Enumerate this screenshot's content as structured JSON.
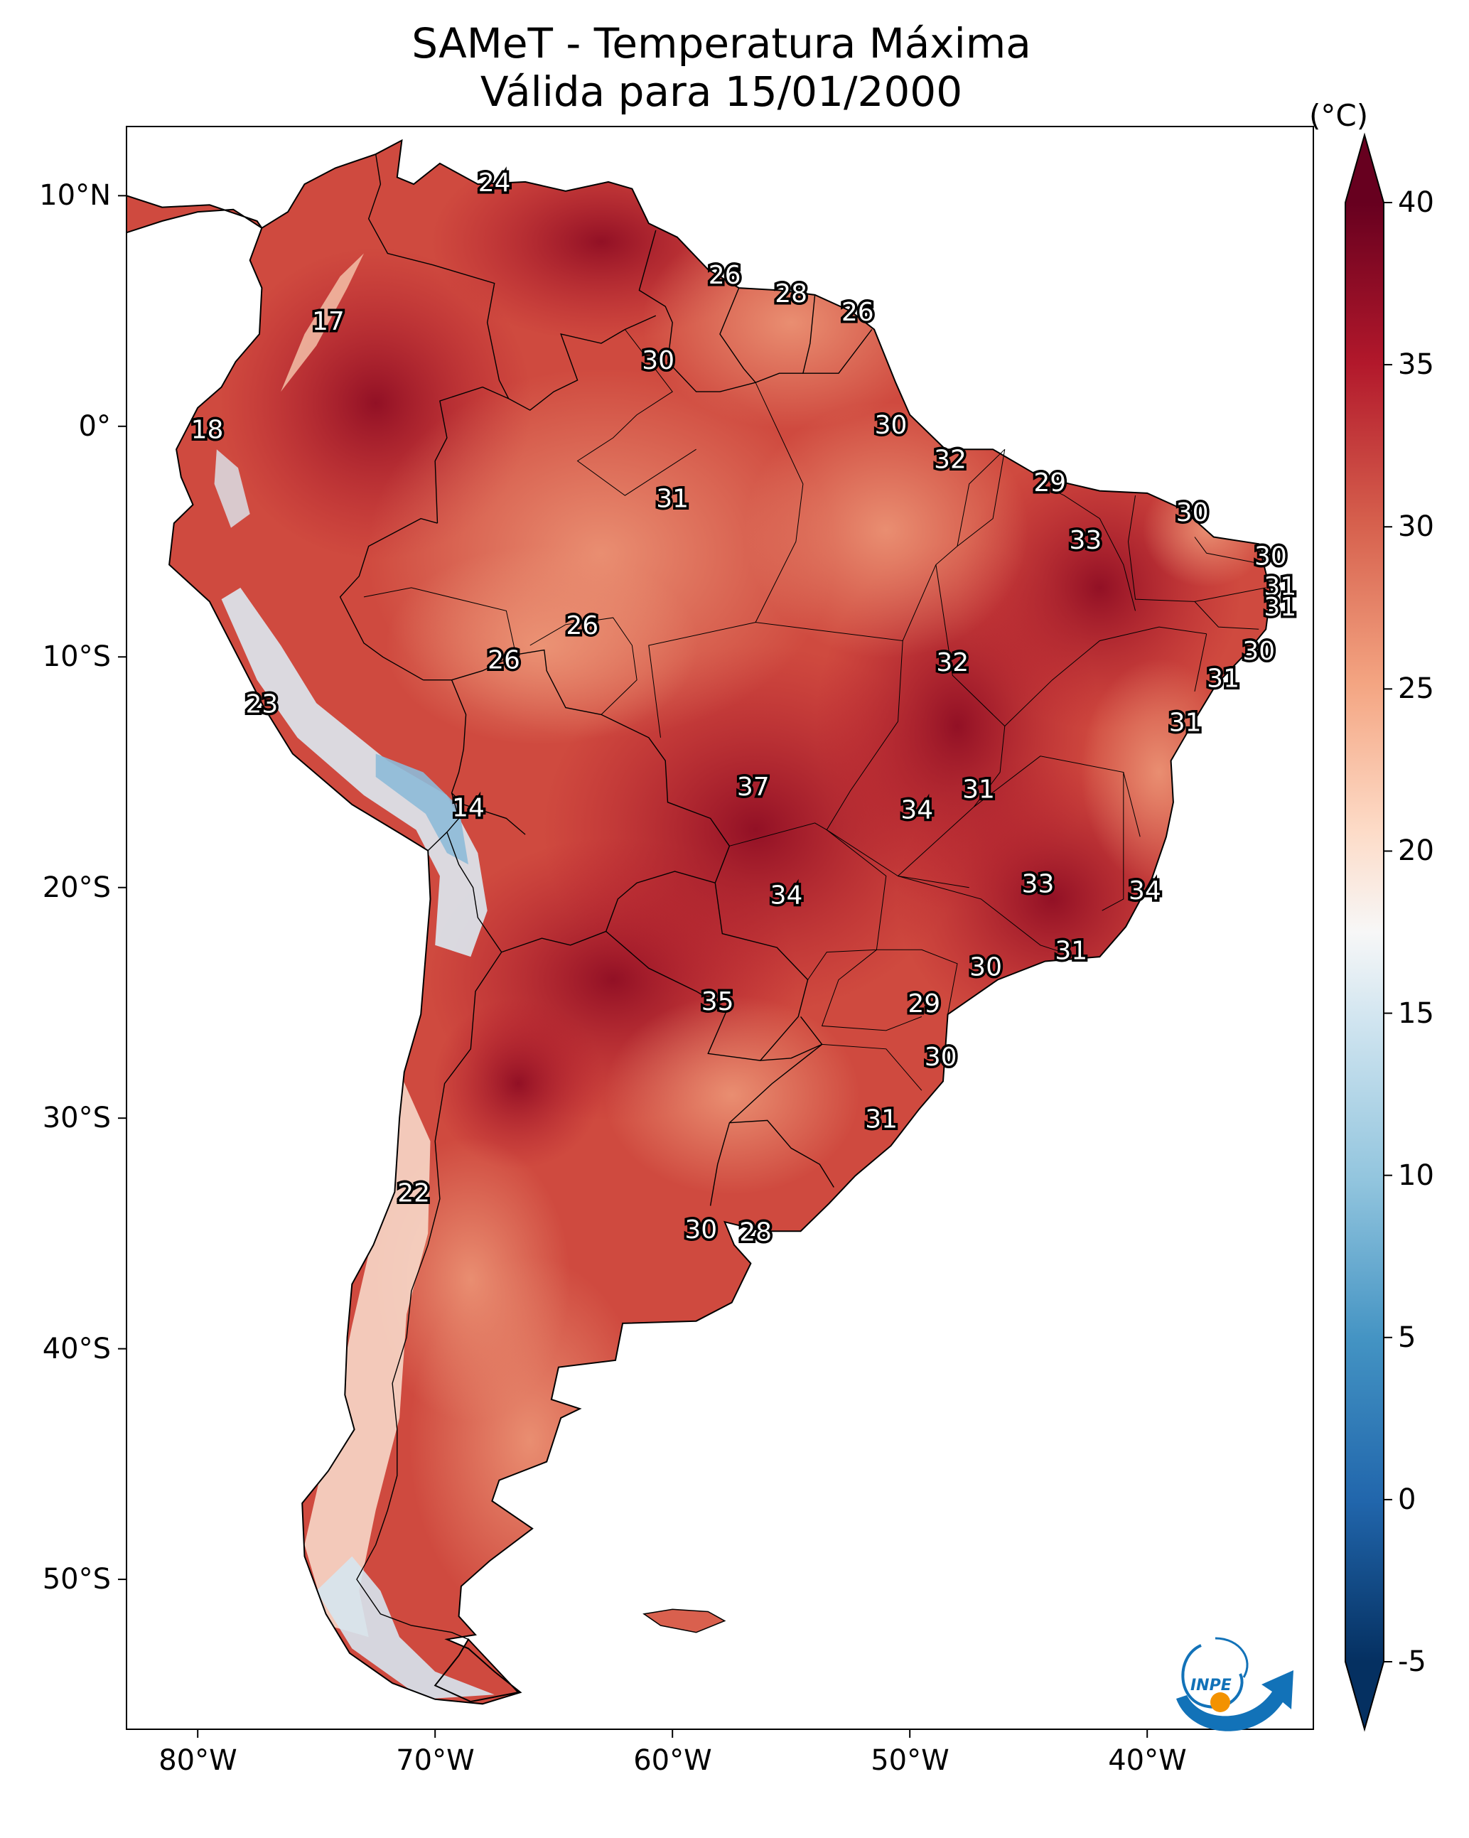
{
  "title_line1": "SAMeT - Temperatura Máxima",
  "title_line2": "Válida para 15/01/2000",
  "colorbar": {
    "units": "(°C)",
    "ticks": [
      "40",
      "35",
      "30",
      "25",
      "20",
      "15",
      "10",
      "5",
      "0",
      "-5"
    ],
    "range": [
      -5,
      40
    ],
    "colors": [
      "#053061",
      "#2166ac",
      "#4393c3",
      "#92c5de",
      "#d1e5f0",
      "#f7f7f7",
      "#fddbc7",
      "#f4a582",
      "#d6604d",
      "#b2182b",
      "#67001f"
    ]
  },
  "axes": {
    "lon_ticks": [
      "80°W",
      "70°W",
      "60°W",
      "50°W",
      "40°W"
    ],
    "lat_ticks": [
      "10°N",
      "0°",
      "10°S",
      "20°S",
      "30°S",
      "40°S",
      "50°S"
    ]
  },
  "map_labels": [
    {
      "text": "24",
      "lon": -67.5,
      "lat": 10.5
    },
    {
      "text": "26",
      "lon": -57.8,
      "lat": 6.5
    },
    {
      "text": "28",
      "lon": -55.0,
      "lat": 5.7
    },
    {
      "text": "26",
      "lon": -52.2,
      "lat": 4.9
    },
    {
      "text": "17",
      "lon": -74.5,
      "lat": 4.5
    },
    {
      "text": "30",
      "lon": -60.6,
      "lat": 2.8
    },
    {
      "text": "30",
      "lon": -50.8,
      "lat": 0.0
    },
    {
      "text": "18",
      "lon": -79.6,
      "lat": -0.2
    },
    {
      "text": "32",
      "lon": -48.3,
      "lat": -1.5
    },
    {
      "text": "29",
      "lon": -44.1,
      "lat": -2.5
    },
    {
      "text": "31",
      "lon": -60.0,
      "lat": -3.2
    },
    {
      "text": "30",
      "lon": -38.1,
      "lat": -3.8
    },
    {
      "text": "33",
      "lon": -42.6,
      "lat": -5.0
    },
    {
      "text": "30",
      "lon": -34.8,
      "lat": -5.7
    },
    {
      "text": "31",
      "lon": -34.4,
      "lat": -7.0
    },
    {
      "text": "31",
      "lon": -34.4,
      "lat": -7.9
    },
    {
      "text": "26",
      "lon": -63.8,
      "lat": -8.7
    },
    {
      "text": "32",
      "lon": -48.2,
      "lat": -10.3
    },
    {
      "text": "30",
      "lon": -35.3,
      "lat": -9.8
    },
    {
      "text": "26",
      "lon": -67.1,
      "lat": -10.2
    },
    {
      "text": "31",
      "lon": -36.8,
      "lat": -11.0
    },
    {
      "text": "23",
      "lon": -77.3,
      "lat": -12.1
    },
    {
      "text": "31",
      "lon": -38.4,
      "lat": -12.9
    },
    {
      "text": "37",
      "lon": -56.6,
      "lat": -15.7
    },
    {
      "text": "31",
      "lon": -47.1,
      "lat": -15.8
    },
    {
      "text": "14",
      "lon": -68.6,
      "lat": -16.6
    },
    {
      "text": "34",
      "lon": -49.7,
      "lat": -16.7
    },
    {
      "text": "33",
      "lon": -44.6,
      "lat": -19.9
    },
    {
      "text": "34",
      "lon": -55.2,
      "lat": -20.4
    },
    {
      "text": "34",
      "lon": -40.1,
      "lat": -20.2
    },
    {
      "text": "31",
      "lon": -43.2,
      "lat": -22.8
    },
    {
      "text": "30",
      "lon": -46.8,
      "lat": -23.5
    },
    {
      "text": "35",
      "lon": -58.1,
      "lat": -25.0
    },
    {
      "text": "29",
      "lon": -49.4,
      "lat": -25.1
    },
    {
      "text": "30",
      "lon": -48.7,
      "lat": -27.4
    },
    {
      "text": "31",
      "lon": -51.2,
      "lat": -30.1
    },
    {
      "text": "22",
      "lon": -70.9,
      "lat": -33.3
    },
    {
      "text": "30",
      "lon": -58.8,
      "lat": -34.9
    },
    {
      "text": "28",
      "lon": -56.5,
      "lat": -35.0
    }
  ]
}
